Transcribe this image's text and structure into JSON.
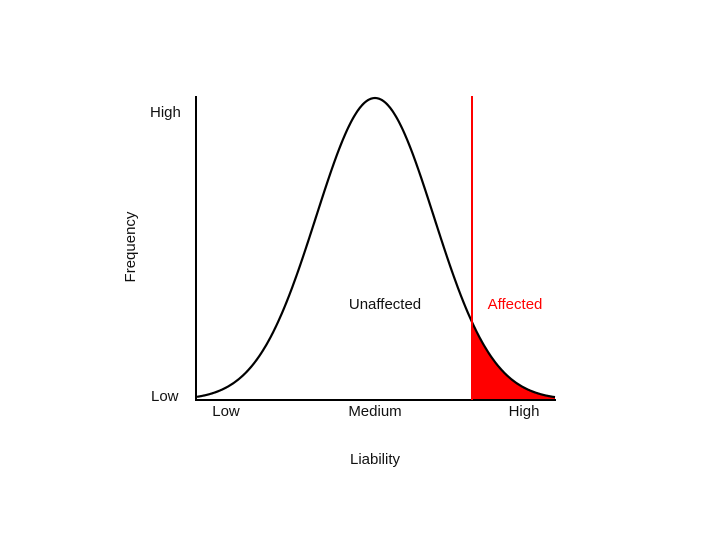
{
  "y_axis": {
    "label": "Frequency",
    "high": "High",
    "low": "Low"
  },
  "x_axis": {
    "label": "Liability",
    "low": "Low",
    "medium": "Medium",
    "high": "High"
  },
  "regions": {
    "unaffected": "Unaffected",
    "affected": "Affected"
  }
}
